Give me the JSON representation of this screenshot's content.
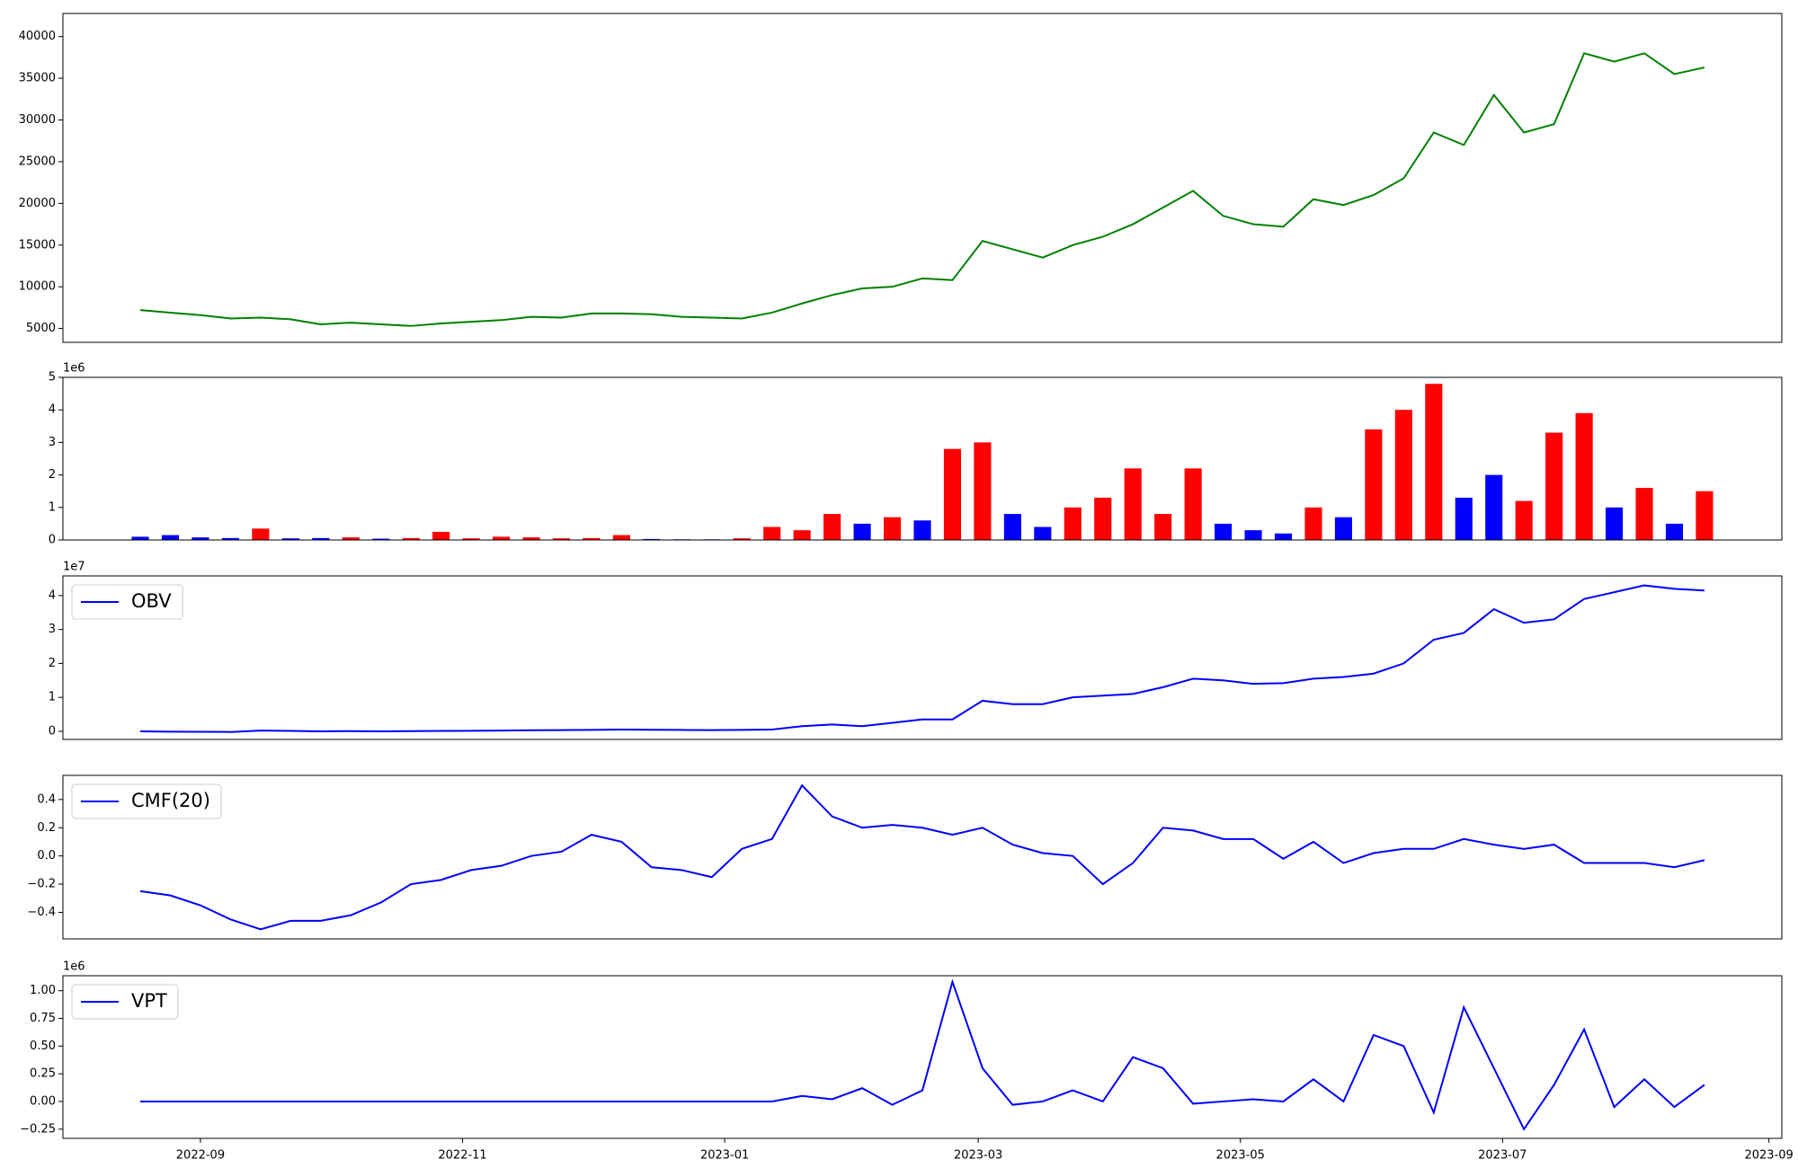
{
  "chart_data": [
    {
      "type": "line",
      "x": [
        "2022-08-18",
        "2022-08-25",
        "2022-09-01",
        "2022-09-08",
        "2022-09-15",
        "2022-09-22",
        "2022-09-29",
        "2022-10-06",
        "2022-10-13",
        "2022-10-20",
        "2022-10-27",
        "2022-11-03",
        "2022-11-10",
        "2022-11-17",
        "2022-11-24",
        "2022-12-01",
        "2022-12-08",
        "2022-12-15",
        "2022-12-22",
        "2022-12-29",
        "2023-01-05",
        "2023-01-12",
        "2023-01-19",
        "2023-01-26",
        "2023-02-02",
        "2023-02-09",
        "2023-02-16",
        "2023-02-23",
        "2023-03-02",
        "2023-03-09",
        "2023-03-16",
        "2023-03-23",
        "2023-03-30",
        "2023-04-06",
        "2023-04-13",
        "2023-04-20",
        "2023-04-27",
        "2023-05-04",
        "2023-05-11",
        "2023-05-18",
        "2023-05-25",
        "2023-06-01",
        "2023-06-08",
        "2023-06-15",
        "2023-06-22",
        "2023-06-29",
        "2023-07-06",
        "2023-07-13",
        "2023-07-20",
        "2023-07-27",
        "2023-08-03",
        "2023-08-10",
        "2023-08-17"
      ],
      "series": [
        {
          "color": "green",
          "values": [
            7200,
            6900,
            6600,
            6200,
            6300,
            6100,
            5500,
            5700,
            5500,
            5300,
            5600,
            5800,
            6000,
            6400,
            6300,
            6800,
            6800,
            6700,
            6400,
            6300,
            6200,
            6900,
            8000,
            9000,
            9800,
            10000,
            11000,
            10800,
            15500,
            14500,
            13500,
            15000,
            16000,
            17500,
            19500,
            21500,
            18500,
            17500,
            17200,
            20500,
            19800,
            21000,
            23000,
            28500,
            27000,
            33000,
            28500,
            29500,
            38000,
            37000,
            38000,
            35500,
            36300
          ]
        }
      ],
      "xlim": [
        "2022-07-31",
        "2023-09-04"
      ],
      "ylim": [
        3340,
        42770
      ],
      "yticks": [
        5000,
        10000,
        15000,
        20000,
        25000,
        30000,
        35000,
        40000
      ]
    },
    {
      "type": "bar",
      "x": [
        "2022-08-18",
        "2022-08-25",
        "2022-09-01",
        "2022-09-08",
        "2022-09-15",
        "2022-09-22",
        "2022-09-29",
        "2022-10-06",
        "2022-10-13",
        "2022-10-20",
        "2022-10-27",
        "2022-11-03",
        "2022-11-10",
        "2022-11-17",
        "2022-11-24",
        "2022-12-01",
        "2022-12-08",
        "2022-12-15",
        "2022-12-22",
        "2022-12-29",
        "2023-01-05",
        "2023-01-12",
        "2023-01-19",
        "2023-01-26",
        "2023-02-02",
        "2023-02-09",
        "2023-02-16",
        "2023-02-23",
        "2023-03-02",
        "2023-03-09",
        "2023-03-16",
        "2023-03-23",
        "2023-03-30",
        "2023-04-06",
        "2023-04-13",
        "2023-04-20",
        "2023-04-27",
        "2023-05-04",
        "2023-05-11",
        "2023-05-18",
        "2023-05-25",
        "2023-06-01",
        "2023-06-08",
        "2023-06-15",
        "2023-06-22",
        "2023-06-29",
        "2023-07-06",
        "2023-07-13",
        "2023-07-20",
        "2023-07-27",
        "2023-08-03",
        "2023-08-10",
        "2023-08-17"
      ],
      "values": [
        100000,
        150000,
        80000,
        60000,
        350000,
        50000,
        60000,
        80000,
        40000,
        60000,
        250000,
        50000,
        100000,
        80000,
        50000,
        60000,
        150000,
        30000,
        20000,
        20000,
        50000,
        400000,
        300000,
        800000,
        500000,
        700000,
        600000,
        2800000,
        3000000,
        800000,
        400000,
        1000000,
        1300000,
        2200000,
        800000,
        2200000,
        500000,
        300000,
        200000,
        1000000,
        700000,
        3400000,
        4000000,
        4800000,
        1300000,
        2000000,
        1200000,
        3300000,
        3900000,
        1000000,
        1600000,
        500000,
        1500000
      ],
      "colors": [
        "blue",
        "blue",
        "blue",
        "blue",
        "red",
        "blue",
        "blue",
        "red",
        "blue",
        "red",
        "red",
        "red",
        "red",
        "red",
        "red",
        "red",
        "red",
        "blue",
        "blue",
        "blue",
        "red",
        "red",
        "red",
        "red",
        "blue",
        "red",
        "blue",
        "red",
        "red",
        "blue",
        "blue",
        "red",
        "red",
        "red",
        "red",
        "red",
        "blue",
        "blue",
        "blue",
        "red",
        "blue",
        "red",
        "red",
        "red",
        "blue",
        "blue",
        "red",
        "red",
        "red",
        "blue",
        "red",
        "blue",
        "red"
      ],
      "xlim": [
        "2022-07-31",
        "2023-09-04"
      ],
      "ylim": [
        0,
        5000000
      ],
      "yticks": [
        {
          "value": 0,
          "label": "0"
        },
        {
          "value": 1000000,
          "label": "1"
        },
        {
          "value": 2000000,
          "label": "2"
        },
        {
          "value": 3000000,
          "label": "3"
        },
        {
          "value": 4000000,
          "label": "4"
        },
        {
          "value": 5000000,
          "label": "5"
        }
      ],
      "offset_label": "1e6"
    },
    {
      "type": "line",
      "x": [
        "2022-08-18",
        "2022-08-25",
        "2022-09-01",
        "2022-09-08",
        "2022-09-15",
        "2022-09-22",
        "2022-09-29",
        "2022-10-06",
        "2022-10-13",
        "2022-10-20",
        "2022-10-27",
        "2022-11-03",
        "2022-11-10",
        "2022-11-17",
        "2022-11-24",
        "2022-12-01",
        "2022-12-08",
        "2022-12-15",
        "2022-12-22",
        "2022-12-29",
        "2023-01-05",
        "2023-01-12",
        "2023-01-19",
        "2023-01-26",
        "2023-02-02",
        "2023-02-09",
        "2023-02-16",
        "2023-02-23",
        "2023-03-02",
        "2023-03-09",
        "2023-03-16",
        "2023-03-23",
        "2023-03-30",
        "2023-04-06",
        "2023-04-13",
        "2023-04-20",
        "2023-04-27",
        "2023-05-04",
        "2023-05-11",
        "2023-05-18",
        "2023-05-25",
        "2023-06-01",
        "2023-06-08",
        "2023-06-15",
        "2023-06-22",
        "2023-06-29",
        "2023-07-06",
        "2023-07-13",
        "2023-07-20",
        "2023-07-27",
        "2023-08-03",
        "2023-08-10",
        "2023-08-17"
      ],
      "series": [
        {
          "name": "OBV",
          "color": "blue",
          "values": [
            0,
            -100000,
            -150000,
            -200000,
            200000,
            100000,
            0,
            50000,
            0,
            50000,
            100000,
            150000,
            200000,
            300000,
            350000,
            400000,
            500000,
            450000,
            400000,
            350000,
            400000,
            500000,
            1500000,
            2000000,
            1500000,
            2500000,
            3500000,
            3500000,
            9000000,
            8000000,
            8000000,
            10000000,
            10500000,
            11000000,
            13000000,
            15500000,
            15000000,
            14000000,
            14200000,
            15500000,
            16000000,
            17000000,
            20000000,
            27000000,
            29000000,
            36000000,
            32000000,
            33000000,
            39000000,
            41000000,
            43000000,
            42000000,
            41500000
          ]
        }
      ],
      "xlim": [
        "2022-07-31",
        "2023-09-04"
      ],
      "ylim": [
        -2400000,
        45800000
      ],
      "yticks": [
        {
          "value": 0,
          "label": "0"
        },
        {
          "value": 10000000,
          "label": "1"
        },
        {
          "value": 20000000,
          "label": "2"
        },
        {
          "value": 30000000,
          "label": "3"
        },
        {
          "value": 40000000,
          "label": "4"
        }
      ],
      "offset_label": "1e7",
      "legend": "upper left"
    },
    {
      "type": "line",
      "x": [
        "2022-08-18",
        "2022-08-25",
        "2022-09-01",
        "2022-09-08",
        "2022-09-15",
        "2022-09-22",
        "2022-09-29",
        "2022-10-06",
        "2022-10-13",
        "2022-10-20",
        "2022-10-27",
        "2022-11-03",
        "2022-11-10",
        "2022-11-17",
        "2022-11-24",
        "2022-12-01",
        "2022-12-08",
        "2022-12-15",
        "2022-12-22",
        "2022-12-29",
        "2023-01-05",
        "2023-01-12",
        "2023-01-19",
        "2023-01-26",
        "2023-02-02",
        "2023-02-09",
        "2023-02-16",
        "2023-02-23",
        "2023-03-02",
        "2023-03-09",
        "2023-03-16",
        "2023-03-23",
        "2023-03-30",
        "2023-04-06",
        "2023-04-13",
        "2023-04-20",
        "2023-04-27",
        "2023-05-04",
        "2023-05-11",
        "2023-05-18",
        "2023-05-25",
        "2023-06-01",
        "2023-06-08",
        "2023-06-15",
        "2023-06-22",
        "2023-06-29",
        "2023-07-06",
        "2023-07-13",
        "2023-07-20",
        "2023-07-27",
        "2023-08-03",
        "2023-08-10",
        "2023-08-17"
      ],
      "series": [
        {
          "name": "CMF(20)",
          "color": "blue",
          "values": [
            -0.25,
            -0.28,
            -0.35,
            -0.45,
            -0.52,
            -0.46,
            -0.46,
            -0.42,
            -0.33,
            -0.2,
            -0.17,
            -0.1,
            -0.07,
            0,
            0.03,
            0.15,
            0.1,
            -0.08,
            -0.1,
            -0.15,
            0.05,
            0.12,
            0.5,
            0.28,
            0.2,
            0.22,
            0.2,
            0.15,
            0.2,
            0.08,
            0.02,
            0,
            -0.2,
            -0.05,
            0.2,
            0.18,
            0.12,
            0.12,
            -0.02,
            0.1,
            -0.05,
            0.02,
            0.05,
            0.05,
            0.12,
            0.08,
            0.05,
            0.08,
            -0.05,
            -0.05,
            -0.05,
            -0.08,
            -0.03
          ]
        }
      ],
      "xlim": [
        "2022-07-31",
        "2023-09-04"
      ],
      "ylim": [
        -0.588,
        0.571
      ],
      "yticks": [
        {
          "value": -0.4,
          "label": "−0.4"
        },
        {
          "value": -0.2,
          "label": "−0.2"
        },
        {
          "value": 0,
          "label": "0.0"
        },
        {
          "value": 0.2,
          "label": "0.2"
        },
        {
          "value": 0.4,
          "label": "0.4"
        }
      ],
      "legend": "upper left"
    },
    {
      "type": "line",
      "x": [
        "2022-08-18",
        "2022-08-25",
        "2022-09-01",
        "2022-09-08",
        "2022-09-15",
        "2022-09-22",
        "2022-09-29",
        "2022-10-06",
        "2022-10-13",
        "2022-10-20",
        "2022-10-27",
        "2022-11-03",
        "2022-11-10",
        "2022-11-17",
        "2022-11-24",
        "2022-12-01",
        "2022-12-08",
        "2022-12-15",
        "2022-12-22",
        "2022-12-29",
        "2023-01-05",
        "2023-01-12",
        "2023-01-19",
        "2023-01-26",
        "2023-02-02",
        "2023-02-09",
        "2023-02-16",
        "2023-02-23",
        "2023-03-02",
        "2023-03-09",
        "2023-03-16",
        "2023-03-23",
        "2023-03-30",
        "2023-04-06",
        "2023-04-13",
        "2023-04-20",
        "2023-04-27",
        "2023-05-04",
        "2023-05-11",
        "2023-05-18",
        "2023-05-25",
        "2023-06-01",
        "2023-06-08",
        "2023-06-15",
        "2023-06-22",
        "2023-06-29",
        "2023-07-06",
        "2023-07-13",
        "2023-07-20",
        "2023-07-27",
        "2023-08-03",
        "2023-08-10",
        "2023-08-17"
      ],
      "series": [
        {
          "name": "VPT",
          "color": "blue",
          "values": [
            0,
            0,
            0,
            0,
            0,
            0,
            0,
            0,
            0,
            0,
            0,
            0,
            0,
            0,
            0,
            0,
            0,
            0,
            0,
            0,
            0,
            0,
            50000,
            20000,
            120000,
            -30000,
            100000,
            1080000,
            300000,
            -30000,
            0,
            100000,
            0,
            400000,
            300000,
            -20000,
            0,
            20000,
            0,
            200000,
            0,
            600000,
            500000,
            -100000,
            850000,
            300000,
            -250000,
            150000,
            650000,
            -50000,
            200000,
            -50000,
            150000
          ]
        }
      ],
      "xlim": [
        "2022-07-31",
        "2023-09-04"
      ],
      "xticks": [
        {
          "value": "2022-09-01",
          "label": "2022-09"
        },
        {
          "value": "2022-11-01",
          "label": "2022-11"
        },
        {
          "value": "2023-01-01",
          "label": "2023-01"
        },
        {
          "value": "2023-03-01",
          "label": "2023-03"
        },
        {
          "value": "2023-05-01",
          "label": "2023-05"
        },
        {
          "value": "2023-07-01",
          "label": "2023-07"
        },
        {
          "value": "2023-09-01",
          "label": "2023-09"
        }
      ],
      "ylim": [
        -333000,
        1135000
      ],
      "yticks": [
        {
          "value": -250000,
          "label": "−0.25"
        },
        {
          "value": 0,
          "label": "0.00"
        },
        {
          "value": 250000,
          "label": "0.25"
        },
        {
          "value": 500000,
          "label": "0.50"
        },
        {
          "value": 750000,
          "label": "0.75"
        },
        {
          "value": 1000000,
          "label": "1.00"
        }
      ],
      "offset_label": "1e6",
      "legend": "upper left"
    }
  ]
}
